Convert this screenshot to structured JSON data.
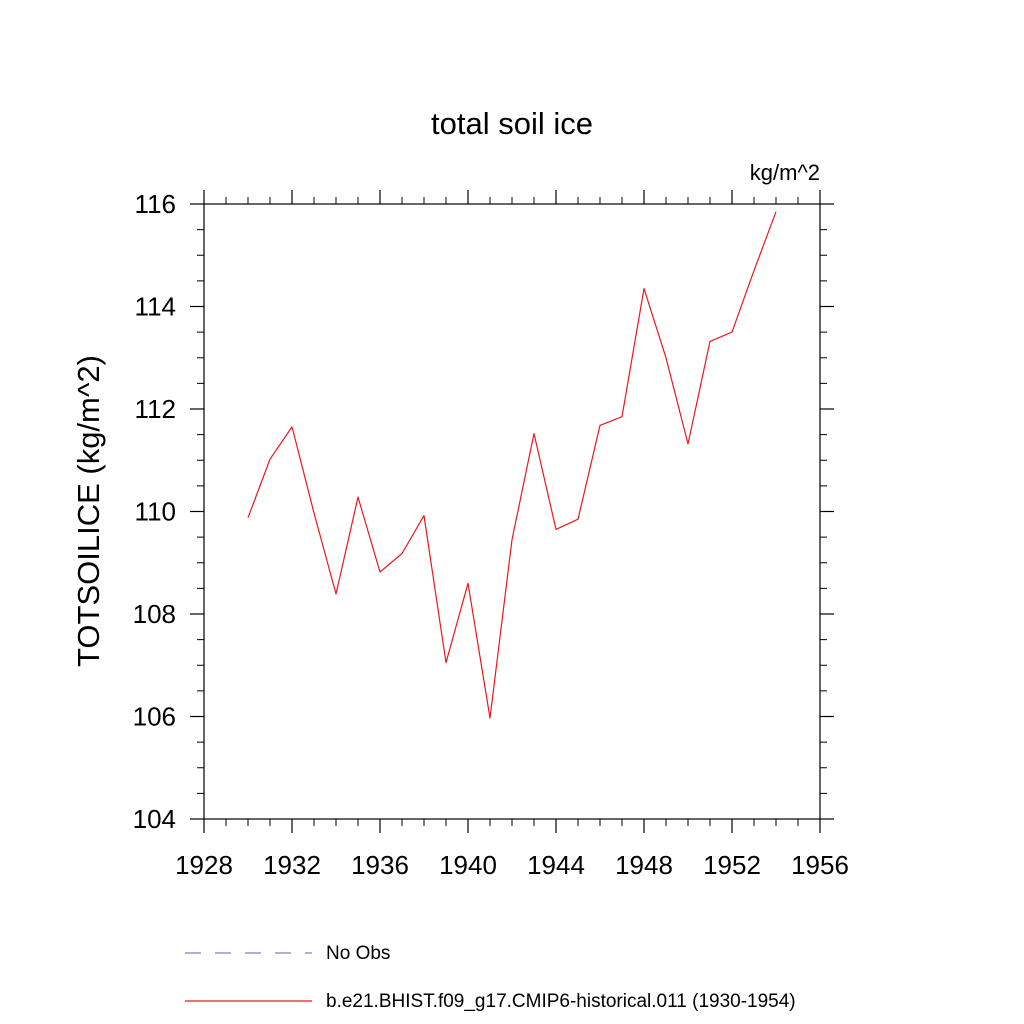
{
  "chart_data": {
    "type": "line",
    "title": "total soil ice",
    "units_label": "kg/m^2",
    "ylabel": "TOTSOILICE  (kg/m^2)",
    "xlabel": "",
    "xlim": [
      1928,
      1956
    ],
    "ylim": [
      104,
      116
    ],
    "x_ticks": [
      1928,
      1932,
      1936,
      1940,
      1944,
      1948,
      1952,
      1956
    ],
    "x_tick_labels": [
      "1928",
      "1932",
      "1936",
      "1940",
      "1944",
      "1948",
      "1952",
      "1956"
    ],
    "y_ticks": [
      104,
      106,
      108,
      110,
      112,
      114,
      116
    ],
    "y_tick_labels": [
      "104",
      "106",
      "108",
      "110",
      "112",
      "114",
      "116"
    ],
    "grid": false,
    "series": [
      {
        "name": "b.e21.BHIST.f09_g17.CMIP6-historical.011 (1930-1954)",
        "color": "#e8191e",
        "x": [
          1930,
          1931,
          1932,
          1933,
          1934,
          1935,
          1936,
          1937,
          1938,
          1939,
          1940,
          1941,
          1942,
          1943,
          1944,
          1945,
          1946,
          1947,
          1948,
          1949,
          1950,
          1951,
          1952,
          1953,
          1954
        ],
        "values": [
          109.88,
          111.02,
          111.65,
          109.97,
          108.39,
          110.28,
          108.82,
          109.18,
          109.92,
          107.05,
          108.6,
          105.97,
          109.45,
          111.52,
          109.65,
          109.85,
          111.68,
          111.85,
          114.35,
          113.0,
          111.32,
          113.32,
          113.5,
          114.7,
          115.85
        ]
      }
    ],
    "legend": {
      "placement": "bottom",
      "entries": [
        {
          "label": "No Obs",
          "color": "#7f7fbf",
          "style": "dashed"
        },
        {
          "label": "b.e21.BHIST.f09_g17.CMIP6-historical.011 (1930-1954)",
          "color": "#e8191e",
          "style": "solid"
        }
      ]
    }
  }
}
